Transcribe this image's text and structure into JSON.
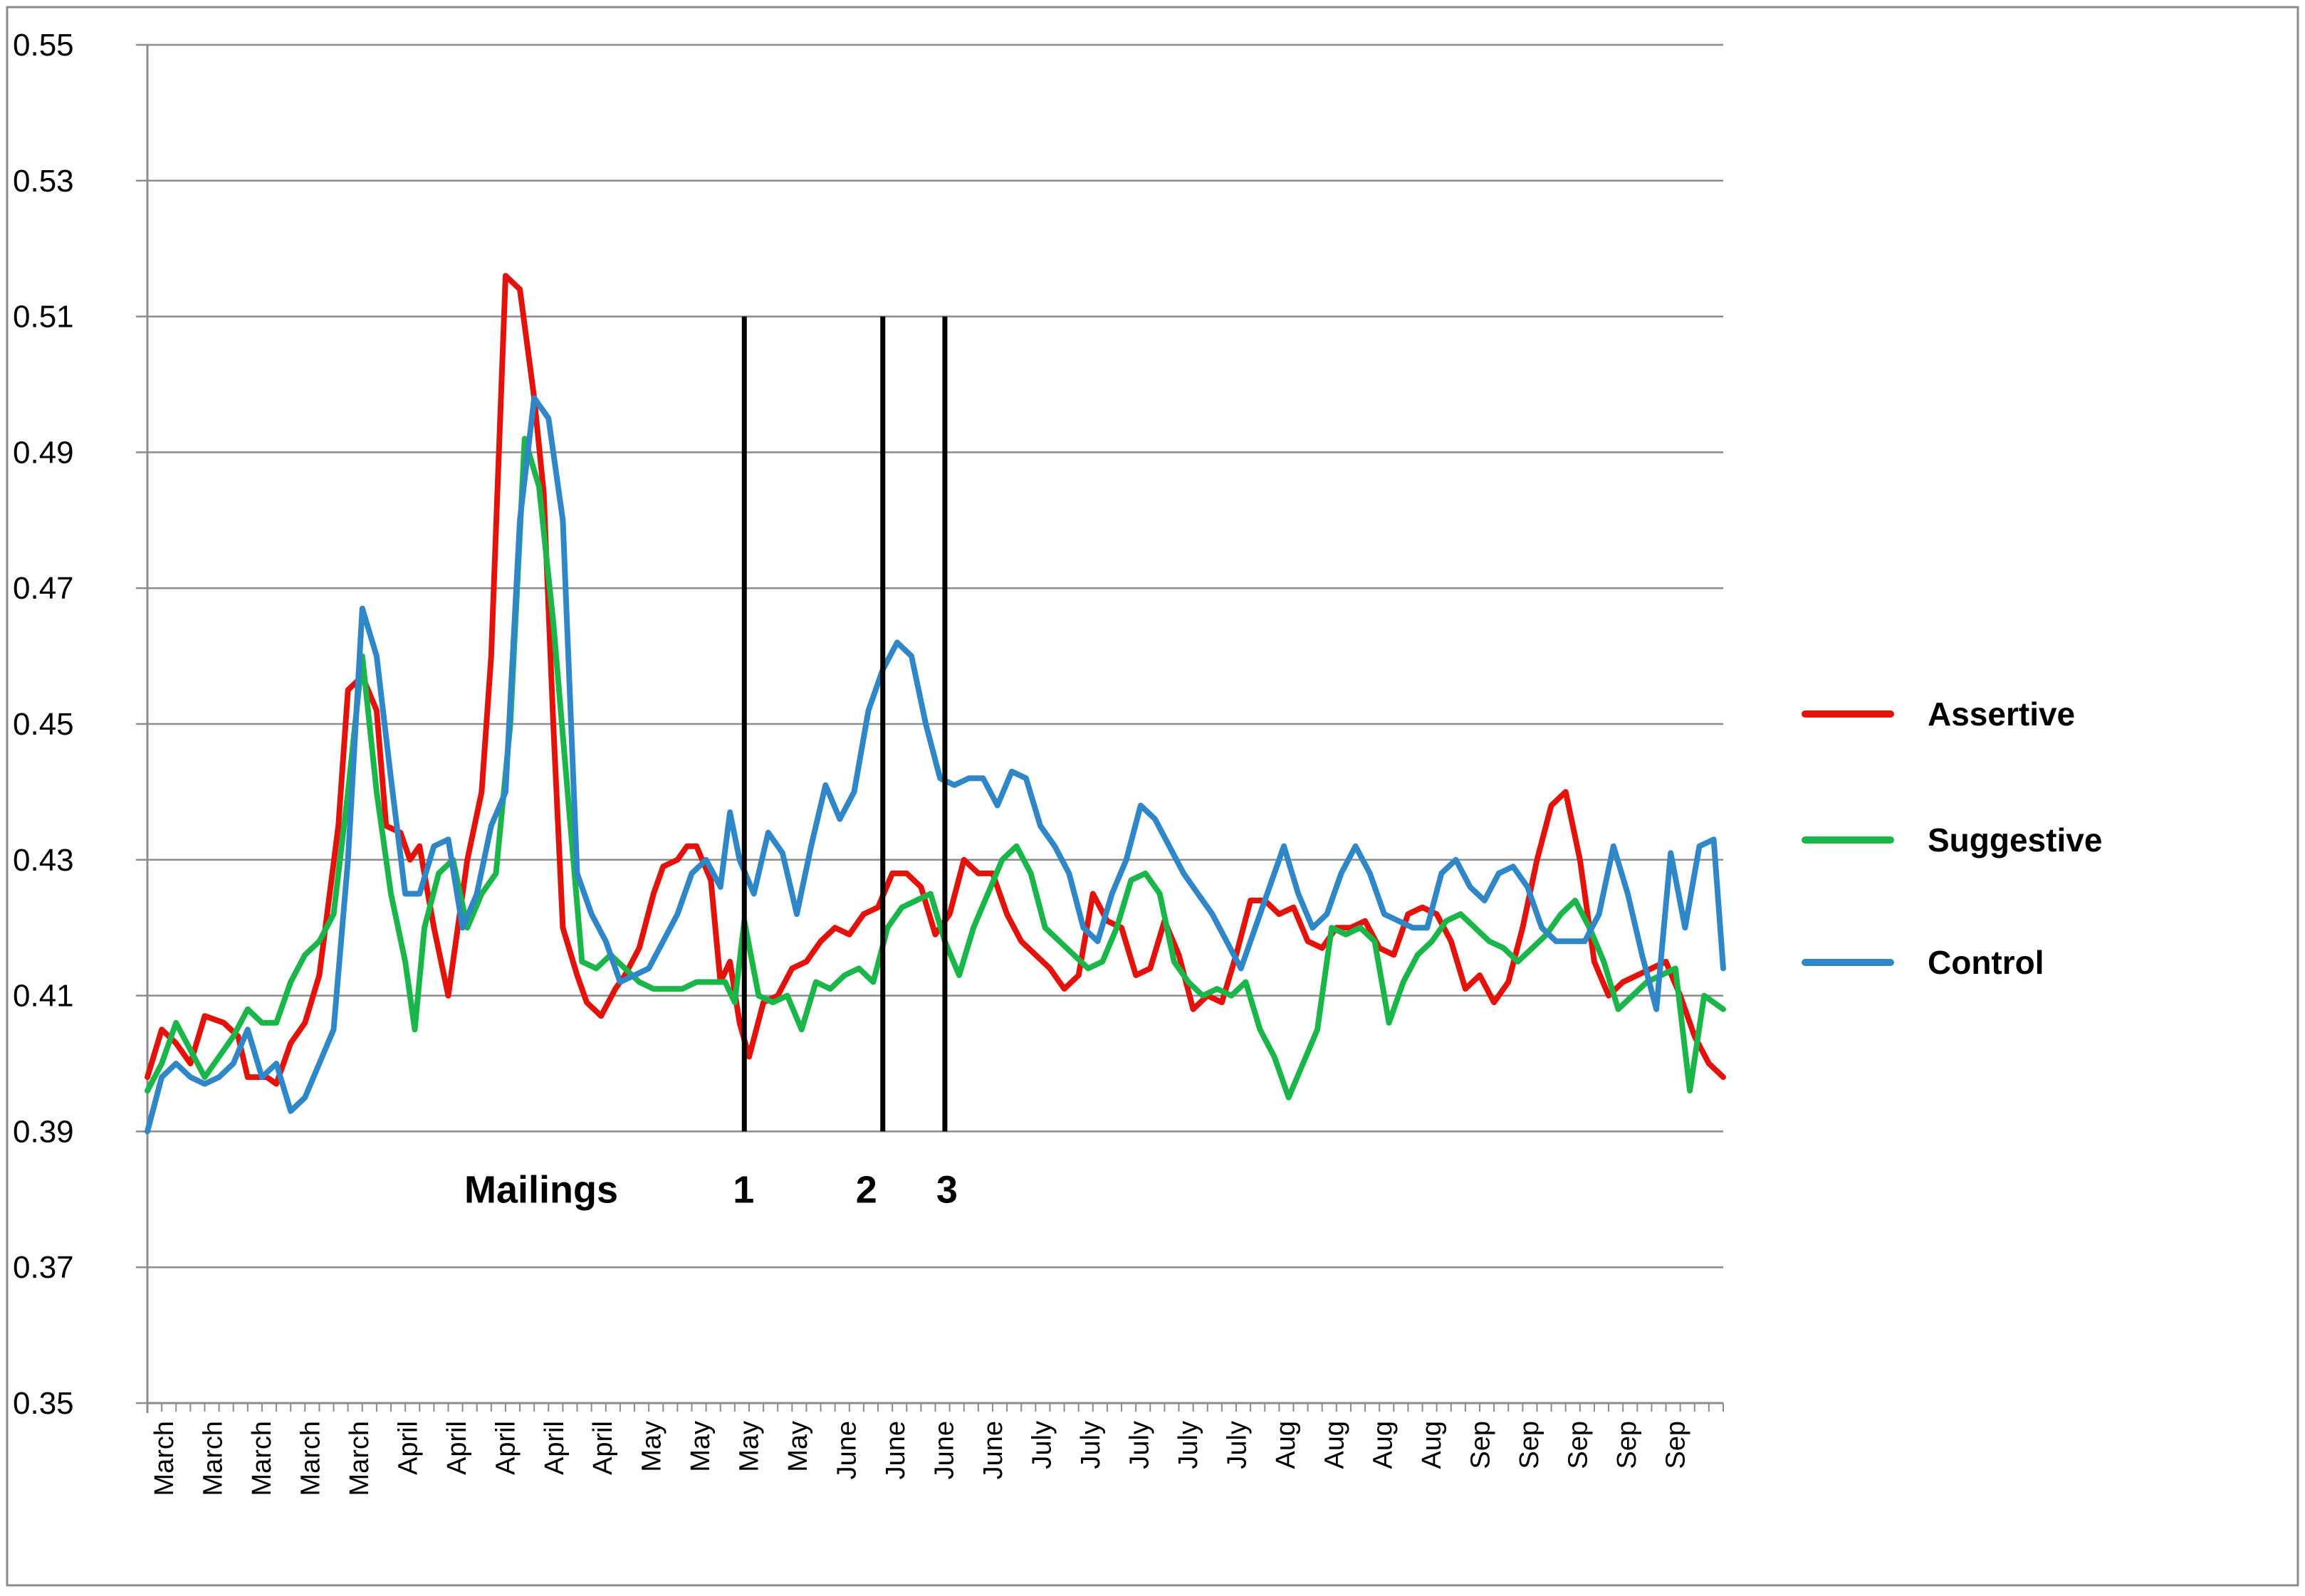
{
  "chart_data": {
    "type": "line",
    "title": "",
    "xlabel": "",
    "ylabel": "",
    "ylim": [
      0.35,
      0.55
    ],
    "y_ticks": [
      "0.35",
      "0.37",
      "0.39",
      "0.41",
      "0.43",
      "0.45",
      "0.47",
      "0.49",
      "0.51",
      "0.53",
      "0.55"
    ],
    "grid": "horizontal",
    "legend_position": "right",
    "x_tick_labels": [
      "March",
      "March",
      "March",
      "March",
      "March",
      "April",
      "April",
      "April",
      "April",
      "April",
      "May",
      "May",
      "May",
      "May",
      "June",
      "June",
      "June",
      "June",
      "July",
      "July",
      "July",
      "July",
      "July",
      "Aug",
      "Aug",
      "Aug",
      "Aug",
      "Sep",
      "Sep",
      "Sep",
      "Sep",
      "Sep"
    ],
    "series": [
      {
        "name": "Assertive",
        "color": "#e3120b",
        "x": [
          0,
          3,
          6,
          9,
          12,
          16,
          19,
          21,
          23,
          25,
          27,
          30,
          33,
          36,
          40,
          42,
          45,
          48,
          50,
          53,
          55,
          57,
          60,
          63,
          65,
          67,
          70,
          72,
          75,
          78,
          81,
          83,
          85,
          87,
          90,
          92,
          95,
          98,
          100,
          103,
          106,
          108,
          111,
          113,
          115,
          118,
          120,
          122,
          124,
          126,
          129,
          132,
          135,
          138,
          141,
          144,
          147,
          150,
          153,
          156,
          159,
          162,
          165,
          168,
          171,
          174,
          177,
          180,
          183,
          186,
          189,
          192,
          195,
          198,
          201,
          204,
          207,
          210,
          213,
          216,
          219,
          222,
          225,
          228,
          231,
          234,
          237,
          240,
          243,
          246,
          249,
          252,
          255,
          258,
          261,
          264,
          267,
          270,
          273,
          276,
          279,
          282,
          285,
          288,
          291,
          294,
          297,
          300,
          303,
          306,
          309,
          312,
          315,
          318,
          321,
          324,
          327,
          330
        ],
        "values": [
          0.398,
          0.405,
          0.403,
          0.4,
          0.407,
          0.406,
          0.404,
          0.398,
          0.398,
          0.398,
          0.397,
          0.403,
          0.406,
          0.413,
          0.435,
          0.455,
          0.457,
          0.452,
          0.435,
          0.434,
          0.43,
          0.432,
          0.42,
          0.41,
          0.42,
          0.43,
          0.44,
          0.46,
          0.516,
          0.514,
          0.498,
          0.484,
          0.45,
          0.42,
          0.413,
          0.409,
          0.407,
          0.411,
          0.413,
          0.417,
          0.425,
          0.429,
          0.43,
          0.432,
          0.432,
          0.427,
          0.412,
          0.415,
          0.406,
          0.401,
          0.409,
          0.41,
          0.414,
          0.415,
          0.418,
          0.42,
          0.419,
          0.422,
          0.423,
          0.428,
          0.428,
          0.426,
          0.419,
          0.422,
          0.43,
          0.428,
          0.428,
          0.422,
          0.418,
          0.416,
          0.414,
          0.411,
          0.413,
          0.425,
          0.421,
          0.42,
          0.413,
          0.414,
          0.421,
          0.416,
          0.408,
          0.41,
          0.409,
          0.416,
          0.424,
          0.424,
          0.422,
          0.423,
          0.418,
          0.417,
          0.42,
          0.42,
          0.421,
          0.417,
          0.416,
          0.422,
          0.423,
          0.422,
          0.418,
          0.411,
          0.413,
          0.409,
          0.412,
          0.42,
          0.43,
          0.438,
          0.44,
          0.43,
          0.415,
          0.41,
          0.412,
          0.413,
          0.414,
          0.415,
          0.41,
          0.404,
          0.4,
          0.398
        ]
      },
      {
        "name": "Suggestive",
        "color": "#1ab64a",
        "x": [
          0,
          3,
          6,
          9,
          12,
          15,
          18,
          21,
          24,
          27,
          30,
          33,
          36,
          39,
          42,
          45,
          48,
          51,
          54,
          56,
          58,
          61,
          64,
          67,
          70,
          73,
          76,
          79,
          82,
          85,
          88,
          91,
          94,
          97,
          100,
          103,
          106,
          109,
          112,
          115,
          118,
          121,
          123,
          125,
          128,
          131,
          134,
          137,
          140,
          143,
          146,
          149,
          152,
          155,
          158,
          161,
          164,
          167,
          170,
          173,
          176,
          179,
          182,
          185,
          188,
          191,
          194,
          197,
          200,
          203,
          206,
          209,
          212,
          215,
          218,
          221,
          224,
          227,
          230,
          233,
          236,
          239,
          242,
          245,
          248,
          251,
          254,
          257,
          260,
          263,
          266,
          269,
          272,
          275,
          278,
          281,
          284,
          287,
          290,
          293,
          296,
          299,
          302,
          305,
          308,
          311,
          314,
          317,
          320,
          323,
          326,
          330
        ],
        "values": [
          0.396,
          0.4,
          0.406,
          0.402,
          0.398,
          0.401,
          0.404,
          0.408,
          0.406,
          0.406,
          0.412,
          0.416,
          0.418,
          0.422,
          0.44,
          0.46,
          0.44,
          0.425,
          0.415,
          0.405,
          0.42,
          0.428,
          0.43,
          0.42,
          0.425,
          0.428,
          0.45,
          0.492,
          0.485,
          0.465,
          0.44,
          0.415,
          0.414,
          0.416,
          0.414,
          0.412,
          0.411,
          0.411,
          0.411,
          0.412,
          0.412,
          0.412,
          0.409,
          0.421,
          0.41,
          0.409,
          0.41,
          0.405,
          0.412,
          0.411,
          0.413,
          0.414,
          0.412,
          0.42,
          0.423,
          0.424,
          0.425,
          0.418,
          0.413,
          0.42,
          0.425,
          0.43,
          0.432,
          0.428,
          0.42,
          0.418,
          0.416,
          0.414,
          0.415,
          0.42,
          0.427,
          0.428,
          0.425,
          0.415,
          0.412,
          0.41,
          0.411,
          0.41,
          0.412,
          0.405,
          0.401,
          0.395,
          0.4,
          0.405,
          0.42,
          0.419,
          0.42,
          0.418,
          0.406,
          0.412,
          0.416,
          0.418,
          0.421,
          0.422,
          0.42,
          0.418,
          0.417,
          0.415,
          0.417,
          0.419,
          0.422,
          0.424,
          0.42,
          0.415,
          0.408,
          0.41,
          0.412,
          0.413,
          0.414,
          0.396,
          0.41,
          0.408
        ]
      },
      {
        "name": "Control",
        "color": "#2f87c8",
        "x": [
          0,
          3,
          6,
          9,
          12,
          15,
          18,
          21,
          24,
          27,
          30,
          33,
          36,
          39,
          42,
          45,
          48,
          51,
          54,
          57,
          60,
          63,
          66,
          69,
          72,
          75,
          78,
          81,
          84,
          87,
          90,
          93,
          96,
          99,
          102,
          105,
          108,
          111,
          114,
          117,
          120,
          122,
          124,
          127,
          130,
          133,
          136,
          139,
          142,
          145,
          148,
          151,
          154,
          157,
          160,
          163,
          166,
          169,
          172,
          175,
          178,
          181,
          184,
          187,
          190,
          193,
          196,
          199,
          202,
          205,
          208,
          211,
          214,
          217,
          220,
          223,
          226,
          229,
          232,
          235,
          238,
          241,
          244,
          247,
          250,
          253,
          256,
          259,
          262,
          265,
          268,
          271,
          274,
          277,
          280,
          283,
          286,
          289,
          292,
          295,
          298,
          301,
          304,
          307,
          310,
          313,
          316,
          319,
          322,
          325,
          328,
          330
        ],
        "values": [
          0.39,
          0.398,
          0.4,
          0.398,
          0.397,
          0.398,
          0.4,
          0.405,
          0.398,
          0.4,
          0.393,
          0.395,
          0.4,
          0.405,
          0.43,
          0.467,
          0.46,
          0.442,
          0.425,
          0.425,
          0.432,
          0.433,
          0.42,
          0.425,
          0.435,
          0.44,
          0.48,
          0.498,
          0.495,
          0.48,
          0.428,
          0.422,
          0.418,
          0.412,
          0.413,
          0.414,
          0.418,
          0.422,
          0.428,
          0.43,
          0.426,
          0.437,
          0.43,
          0.425,
          0.434,
          0.431,
          0.422,
          0.432,
          0.441,
          0.436,
          0.44,
          0.452,
          0.458,
          0.462,
          0.46,
          0.45,
          0.442,
          0.441,
          0.442,
          0.442,
          0.438,
          0.443,
          0.442,
          0.435,
          0.432,
          0.428,
          0.42,
          0.418,
          0.425,
          0.43,
          0.438,
          0.436,
          0.432,
          0.428,
          0.425,
          0.422,
          0.418,
          0.414,
          0.42,
          0.426,
          0.432,
          0.425,
          0.42,
          0.422,
          0.428,
          0.432,
          0.428,
          0.422,
          0.421,
          0.42,
          0.42,
          0.428,
          0.43,
          0.426,
          0.424,
          0.428,
          0.429,
          0.426,
          0.42,
          0.418,
          0.418,
          0.418,
          0.422,
          0.432,
          0.425,
          0.416,
          0.408,
          0.431,
          0.42,
          0.432,
          0.433,
          0.414
        ]
      }
    ],
    "mailing_lines": [
      {
        "label": "1",
        "x": 125,
        "y_top": 0.51,
        "y_bottom": 0.39
      },
      {
        "label": "2",
        "x": 154,
        "y_top": 0.51,
        "y_bottom": 0.39
      },
      {
        "label": "3",
        "x": 167,
        "y_top": 0.51,
        "y_bottom": 0.39
      }
    ],
    "annotation_label": "Mailings",
    "x_max": 330
  }
}
